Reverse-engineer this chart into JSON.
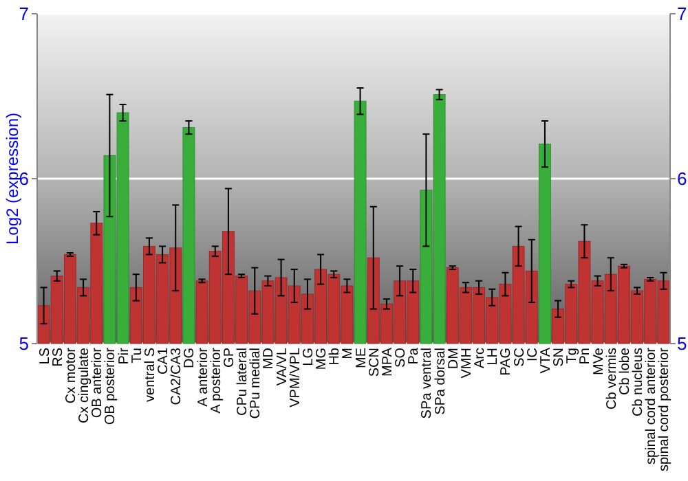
{
  "chart_data": {
    "type": "bar",
    "ylabel": "Log2 (expression)",
    "categories": [
      "LS",
      "RS",
      "Cx motor",
      "Cx cingulate",
      "OB anterior",
      "OB posterior",
      "Pir",
      "Tu",
      "ventral S",
      "CA1",
      "CA2/CA3",
      "DG",
      "A anterior",
      "A posterior",
      "GP",
      "CPu lateral",
      "CPu medial",
      "MD",
      "VA/VL",
      "VPM/VPL",
      "LG",
      "MG",
      "Hb",
      "M",
      "ME",
      "SCN",
      "MPA",
      "SO",
      "Pa",
      "SPa ventral",
      "SPa dorsal",
      "DM",
      "VMH",
      "Arc",
      "LH",
      "PAG",
      "SC",
      "IC",
      "VTA",
      "SN",
      "Tg",
      "Pn",
      "MVe",
      "Cb vermis",
      "Cb lobe",
      "Cb nucleus",
      "spinal cord anterior",
      "spinal cord posterior"
    ],
    "values": [
      5.23,
      5.41,
      5.54,
      5.34,
      5.73,
      6.14,
      6.4,
      5.34,
      5.59,
      5.54,
      5.58,
      6.31,
      5.38,
      5.56,
      5.68,
      5.41,
      5.32,
      5.38,
      5.4,
      5.35,
      5.3,
      5.45,
      5.42,
      5.35,
      6.47,
      5.52,
      5.24,
      5.38,
      5.38,
      5.93,
      6.51,
      5.46,
      5.34,
      5.34,
      5.28,
      5.36,
      5.59,
      5.44,
      6.21,
      5.21,
      5.36,
      5.62,
      5.38,
      5.42,
      5.47,
      5.32,
      5.39,
      5.38
    ],
    "errors": [
      0.11,
      0.03,
      0.01,
      0.05,
      0.07,
      0.37,
      0.05,
      0.08,
      0.05,
      0.05,
      0.26,
      0.04,
      0.01,
      0.03,
      0.26,
      0.01,
      0.14,
      0.03,
      0.11,
      0.1,
      0.09,
      0.09,
      0.02,
      0.04,
      0.08,
      0.31,
      0.03,
      0.09,
      0.07,
      0.34,
      0.03,
      0.01,
      0.03,
      0.04,
      0.05,
      0.07,
      0.12,
      0.19,
      0.14,
      0.05,
      0.02,
      0.1,
      0.03,
      0.1,
      0.01,
      0.02,
      0.01,
      0.05
    ],
    "colors": [
      "#c03333",
      "#c03333",
      "#c03333",
      "#c03333",
      "#c03333",
      "#3aae3a",
      "#3aae3a",
      "#c03333",
      "#c03333",
      "#c03333",
      "#c03333",
      "#3aae3a",
      "#c03333",
      "#c03333",
      "#c03333",
      "#c03333",
      "#c03333",
      "#c03333",
      "#c03333",
      "#c03333",
      "#c03333",
      "#c03333",
      "#c03333",
      "#c03333",
      "#3aae3a",
      "#c03333",
      "#c03333",
      "#c03333",
      "#c03333",
      "#3aae3a",
      "#3aae3a",
      "#c03333",
      "#c03333",
      "#c03333",
      "#c03333",
      "#c03333",
      "#c03333",
      "#c03333",
      "#3aae3a",
      "#c03333",
      "#c03333",
      "#c03333",
      "#c03333",
      "#c03333",
      "#c03333",
      "#c03333",
      "#c03333",
      "#c03333"
    ],
    "ylim": [
      5,
      7
    ],
    "yticks": [
      5,
      6,
      7
    ],
    "y2lim": [
      5,
      7
    ],
    "y2ticks": [
      5,
      6,
      7
    ],
    "grid": "y"
  }
}
